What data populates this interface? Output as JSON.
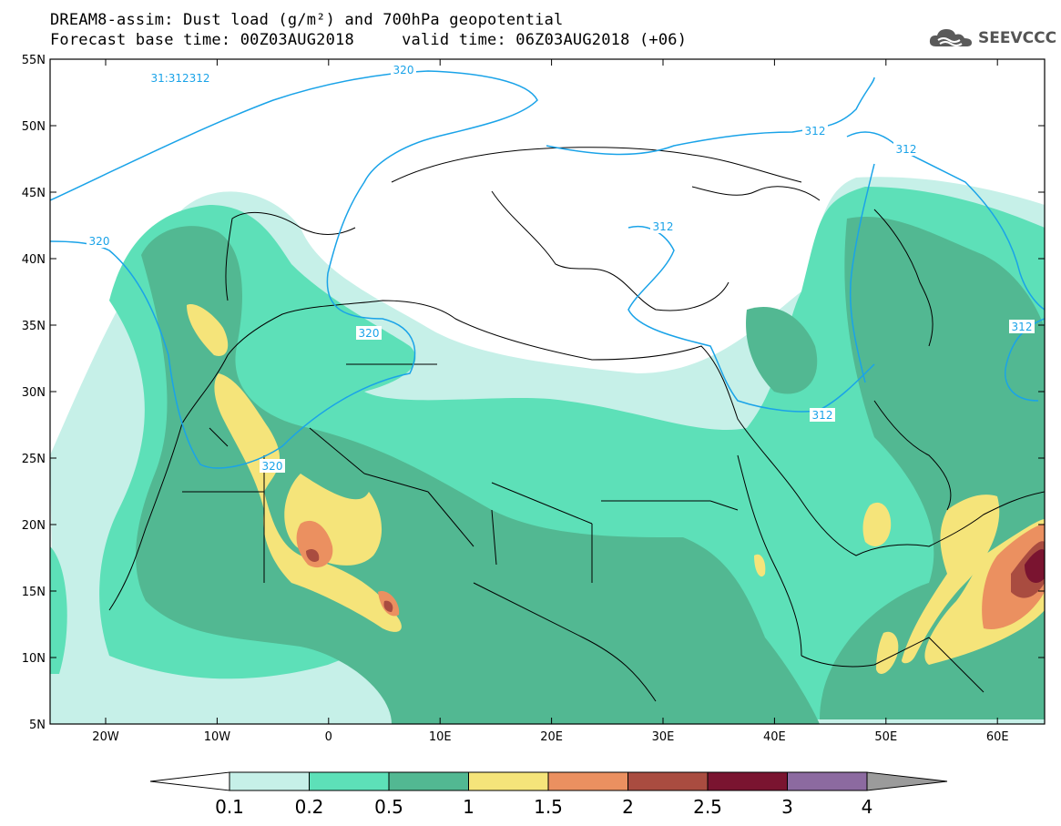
{
  "header": {
    "title_line1": "DREAM8-assim: Dust load (g/m²) and 700hPa geopotential",
    "title_line2": "Forecast base time: 00Z03AUG2018     valid time: 06Z03AUG2018 (+06)"
  },
  "brand": {
    "name": "SEEVCCC",
    "icon": "cloud-icon"
  },
  "axes": {
    "lat_labels": [
      "55N",
      "50N",
      "45N",
      "40N",
      "35N",
      "30N",
      "25N",
      "20N",
      "15N",
      "10N",
      "5N"
    ],
    "lon_labels": [
      "20W",
      "10W",
      "0",
      "10E",
      "20E",
      "30E",
      "40E",
      "50E",
      "60E"
    ]
  },
  "contours": {
    "labels": [
      {
        "text": "320"
      },
      {
        "text": "320"
      },
      {
        "text": "320"
      },
      {
        "text": "320"
      },
      {
        "text": "312"
      },
      {
        "text": "312"
      },
      {
        "text": "312"
      },
      {
        "text": "312"
      },
      {
        "text": "312"
      },
      {
        "text": "31:312312"
      }
    ]
  },
  "colorbar": {
    "labels": [
      "0.1",
      "0.2",
      "0.5",
      "1",
      "1.5",
      "2",
      "2.5",
      "3",
      "4"
    ],
    "colors": [
      "#c6f0e8",
      "#5de0b8",
      "#52b892",
      "#f5e47a",
      "#eb9060",
      "#a94c40",
      "#7a1430",
      "#8c6aa0"
    ],
    "overflow_color": "#9b9b9b",
    "underflow_color": "#ffffff"
  }
}
